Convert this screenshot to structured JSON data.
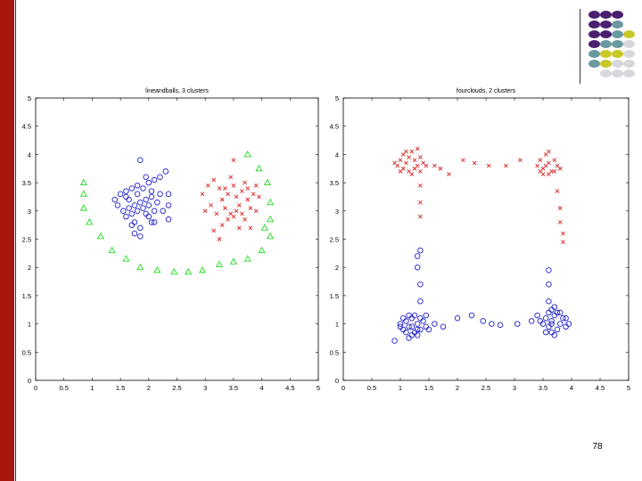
{
  "slide": {
    "page_number": "78",
    "decoration_colors": {
      "dark_purple": "#4b1f6f",
      "teal": "#6a9aa0",
      "yellow": "#c8c828",
      "light_gray": "#d8d8dc",
      "left_bar": "#a8150c"
    }
  },
  "chart_data": [
    {
      "type": "scatter",
      "title": "lineandballs, 3 clusters",
      "xlim": [
        0,
        5
      ],
      "ylim": [
        0,
        5
      ],
      "x_ticks": [
        "0",
        "0.5",
        "1",
        "1.5",
        "2",
        "2.5",
        "3",
        "3.5",
        "4",
        "4.5",
        "5"
      ],
      "y_ticks": [
        "0",
        "0.5",
        "1",
        "1.5",
        "2",
        "2.5",
        "3",
        "3.5",
        "4",
        "4.5",
        "5"
      ],
      "grid": false,
      "series": [
        {
          "marker": "triangle",
          "color": "#22dd22",
          "points": [
            [
              0.85,
              3.5
            ],
            [
              0.85,
              3.3
            ],
            [
              0.85,
              3.05
            ],
            [
              0.95,
              2.8
            ],
            [
              1.15,
              2.55
            ],
            [
              1.35,
              2.3
            ],
            [
              1.6,
              2.15
            ],
            [
              1.85,
              2.0
            ],
            [
              2.15,
              1.95
            ],
            [
              2.45,
              1.92
            ],
            [
              2.7,
              1.92
            ],
            [
              2.95,
              1.95
            ],
            [
              3.25,
              2.05
            ],
            [
              3.5,
              2.1
            ],
            [
              3.75,
              2.15
            ],
            [
              4.0,
              2.3
            ],
            [
              4.15,
              2.55
            ],
            [
              4.15,
              2.85
            ],
            [
              4.15,
              3.15
            ],
            [
              4.1,
              3.5
            ],
            [
              3.95,
              3.75
            ],
            [
              3.75,
              4.0
            ],
            [
              4.05,
              2.7
            ]
          ]
        },
        {
          "marker": "circle",
          "color": "#2222cc",
          "points": [
            [
              1.5,
              3.3
            ],
            [
              1.6,
              3.35
            ],
            [
              1.7,
              3.4
            ],
            [
              1.8,
              3.45
            ],
            [
              1.9,
              3.4
            ],
            [
              2.0,
              3.5
            ],
            [
              2.1,
              3.55
            ],
            [
              2.2,
              3.6
            ],
            [
              2.3,
              3.7
            ],
            [
              2.35,
              3.3
            ],
            [
              2.2,
              3.3
            ],
            [
              2.05,
              3.25
            ],
            [
              1.95,
              3.2
            ],
            [
              1.85,
              3.15
            ],
            [
              1.75,
              3.1
            ],
            [
              1.65,
              3.05
            ],
            [
              1.55,
              3.0
            ],
            [
              1.45,
              3.1
            ],
            [
              1.4,
              3.2
            ],
            [
              1.6,
              2.9
            ],
            [
              1.7,
              2.95
            ],
            [
              1.8,
              3.0
            ],
            [
              1.9,
              3.05
            ],
            [
              2.0,
              3.1
            ],
            [
              2.1,
              3.0
            ],
            [
              2.25,
              3.0
            ],
            [
              2.35,
              3.1
            ],
            [
              1.75,
              2.8
            ],
            [
              1.85,
              2.7
            ],
            [
              1.75,
              2.6
            ],
            [
              1.85,
              2.55
            ],
            [
              2.0,
              2.9
            ],
            [
              2.1,
              2.8
            ],
            [
              2.35,
              2.85
            ],
            [
              1.85,
              3.9
            ],
            [
              1.95,
              3.6
            ],
            [
              2.05,
              3.35
            ],
            [
              1.65,
              3.2
            ],
            [
              1.8,
              3.3
            ],
            [
              2.15,
              3.15
            ],
            [
              1.95,
              2.95
            ],
            [
              2.05,
              2.8
            ],
            [
              1.6,
              3.25
            ],
            [
              1.7,
              2.75
            ]
          ]
        },
        {
          "marker": "x",
          "color": "#dd2222",
          "points": [
            [
              2.95,
              3.3
            ],
            [
              3.05,
              3.45
            ],
            [
              3.15,
              3.55
            ],
            [
              3.25,
              3.4
            ],
            [
              3.3,
              3.2
            ],
            [
              3.35,
              3.05
            ],
            [
              3.4,
              3.3
            ],
            [
              3.45,
              3.6
            ],
            [
              3.5,
              3.45
            ],
            [
              3.55,
              3.25
            ],
            [
              3.6,
              3.1
            ],
            [
              3.65,
              3.35
            ],
            [
              3.7,
              3.5
            ],
            [
              3.75,
              3.2
            ],
            [
              3.8,
              3.05
            ],
            [
              3.85,
              3.3
            ],
            [
              3.9,
              3.0
            ],
            [
              3.95,
              3.25
            ],
            [
              3.5,
              2.9
            ],
            [
              3.4,
              2.85
            ],
            [
              3.3,
              2.75
            ],
            [
              3.2,
              2.95
            ],
            [
              3.1,
              3.1
            ],
            [
              3.0,
              3.0
            ],
            [
              3.15,
              2.65
            ],
            [
              3.25,
              2.5
            ],
            [
              3.6,
              2.7
            ],
            [
              3.7,
              2.85
            ],
            [
              3.8,
              2.7
            ],
            [
              3.55,
              3.0
            ],
            [
              3.45,
              2.95
            ],
            [
              3.35,
              3.4
            ],
            [
              3.5,
              3.9
            ],
            [
              3.65,
              2.95
            ],
            [
              3.75,
              3.4
            ],
            [
              3.9,
              3.45
            ]
          ]
        }
      ]
    },
    {
      "type": "scatter",
      "title": "fourclouds, 2 clusters",
      "xlim": [
        0,
        5
      ],
      "ylim": [
        0,
        5
      ],
      "x_ticks": [
        "0",
        "0.5",
        "1",
        "1.5",
        "2",
        "2.5",
        "3",
        "3.5",
        "4",
        "4.5",
        "5"
      ],
      "y_ticks": [
        "0",
        "0.5",
        "1",
        "1.5",
        "2",
        "2.5",
        "3",
        "3.5",
        "4",
        "4.5",
        "5"
      ],
      "grid": false,
      "series": [
        {
          "marker": "x",
          "color": "#dd2222",
          "points": [
            [
              0.95,
              3.8
            ],
            [
              1.0,
              3.9
            ],
            [
              1.05,
              4.0
            ],
            [
              1.1,
              3.85
            ],
            [
              1.15,
              3.95
            ],
            [
              1.2,
              4.05
            ],
            [
              1.25,
              3.9
            ],
            [
              1.3,
              3.8
            ],
            [
              1.35,
              3.95
            ],
            [
              1.4,
              3.85
            ],
            [
              1.05,
              3.75
            ],
            [
              1.15,
              3.7
            ],
            [
              1.25,
              3.75
            ],
            [
              1.35,
              3.7
            ],
            [
              1.45,
              3.8
            ],
            [
              1.1,
              4.05
            ],
            [
              1.3,
              4.1
            ],
            [
              0.9,
              3.85
            ],
            [
              1.0,
              3.7
            ],
            [
              1.2,
              3.65
            ],
            [
              3.4,
              3.8
            ],
            [
              3.45,
              3.9
            ],
            [
              3.5,
              3.75
            ],
            [
              3.55,
              4.0
            ],
            [
              3.6,
              3.85
            ],
            [
              3.65,
              3.7
            ],
            [
              3.7,
              3.9
            ],
            [
              3.75,
              3.8
            ],
            [
              3.8,
              3.75
            ],
            [
              3.5,
              3.65
            ],
            [
              3.6,
              3.65
            ],
            [
              3.55,
              3.8
            ],
            [
              3.7,
              3.7
            ],
            [
              3.45,
              3.7
            ],
            [
              3.6,
              4.05
            ],
            [
              1.6,
              3.8
            ],
            [
              1.7,
              3.75
            ],
            [
              1.85,
              3.65
            ],
            [
              2.1,
              3.9
            ],
            [
              2.3,
              3.85
            ],
            [
              2.55,
              3.8
            ],
            [
              2.85,
              3.8
            ],
            [
              3.1,
              3.9
            ],
            [
              1.35,
              3.45
            ],
            [
              1.35,
              3.15
            ],
            [
              1.35,
              2.9
            ],
            [
              3.75,
              3.35
            ],
            [
              3.8,
              3.05
            ],
            [
              3.8,
              2.8
            ],
            [
              3.85,
              2.6
            ],
            [
              3.85,
              2.45
            ]
          ]
        },
        {
          "marker": "circle",
          "color": "#2222cc",
          "points": [
            [
              1.0,
              1.0
            ],
            [
              1.05,
              0.9
            ],
            [
              1.1,
              1.05
            ],
            [
              1.15,
              0.95
            ],
            [
              1.2,
              1.1
            ],
            [
              1.25,
              0.85
            ],
            [
              1.3,
              1.0
            ],
            [
              1.35,
              0.9
            ],
            [
              1.4,
              1.05
            ],
            [
              1.45,
              0.95
            ],
            [
              1.05,
              1.1
            ],
            [
              1.15,
              1.15
            ],
            [
              1.25,
              1.15
            ],
            [
              1.35,
              1.1
            ],
            [
              1.1,
              0.85
            ],
            [
              1.2,
              0.8
            ],
            [
              1.3,
              0.8
            ],
            [
              1.0,
              0.95
            ],
            [
              1.45,
              1.15
            ],
            [
              1.2,
              0.95
            ],
            [
              1.3,
              0.9
            ],
            [
              0.9,
              0.7
            ],
            [
              1.15,
              0.75
            ],
            [
              1.5,
              0.9
            ],
            [
              1.6,
              1.0
            ],
            [
              3.5,
              1.0
            ],
            [
              3.55,
              1.1
            ],
            [
              3.6,
              0.95
            ],
            [
              3.65,
              1.05
            ],
            [
              3.7,
              1.15
            ],
            [
              3.75,
              0.9
            ],
            [
              3.8,
              1.0
            ],
            [
              3.85,
              1.1
            ],
            [
              3.9,
              0.95
            ],
            [
              3.55,
              0.85
            ],
            [
              3.65,
              0.85
            ],
            [
              3.75,
              1.2
            ],
            [
              3.6,
              1.2
            ],
            [
              3.7,
              0.8
            ],
            [
              3.8,
              1.2
            ],
            [
              3.45,
              1.05
            ],
            [
              3.9,
              1.1
            ],
            [
              3.95,
              1.0
            ],
            [
              3.65,
              1.0
            ],
            [
              1.75,
              0.95
            ],
            [
              2.0,
              1.1
            ],
            [
              2.25,
              1.15
            ],
            [
              2.45,
              1.05
            ],
            [
              2.6,
              1.0
            ],
            [
              2.75,
              0.98
            ],
            [
              3.05,
              1.0
            ],
            [
              3.3,
              1.05
            ],
            [
              3.4,
              1.15
            ],
            [
              1.35,
              1.4
            ],
            [
              1.35,
              1.7
            ],
            [
              1.3,
              2.0
            ],
            [
              1.3,
              2.2
            ],
            [
              1.35,
              2.3
            ],
            [
              3.6,
              1.4
            ],
            [
              3.7,
              1.3
            ],
            [
              3.6,
              1.7
            ],
            [
              3.6,
              1.95
            ],
            [
              3.65,
              1.25
            ]
          ]
        }
      ]
    }
  ]
}
